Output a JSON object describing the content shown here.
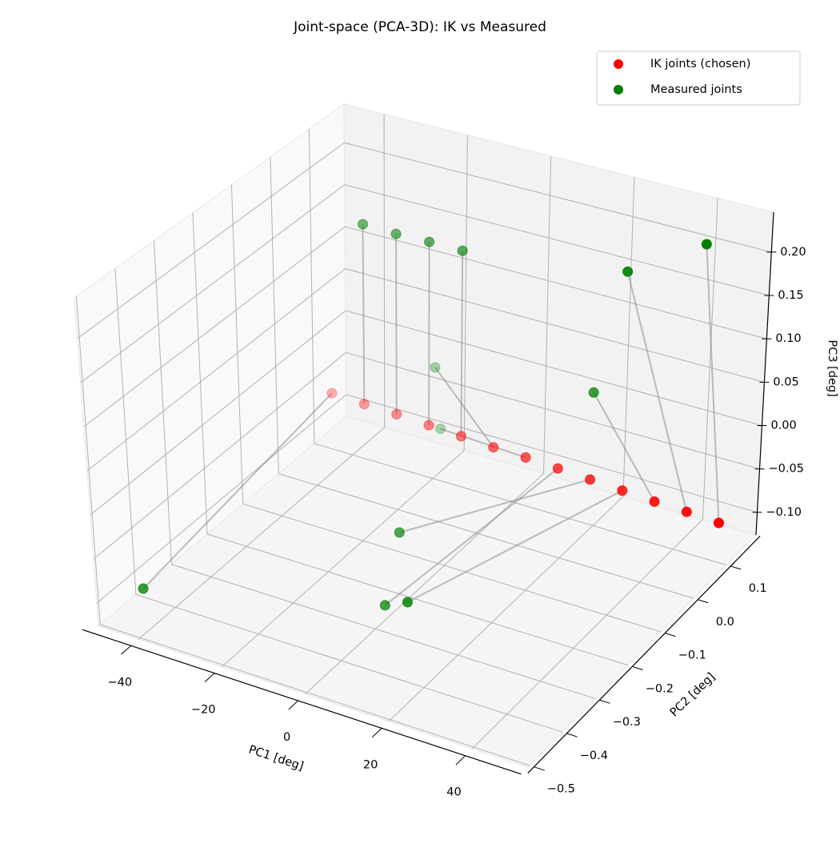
{
  "chart_data": {
    "type": "scatter",
    "title": "Joint-space (PCA-3D): IK vs Measured",
    "xlabel": "PC1 [deg]",
    "ylabel": "PC2 [deg]",
    "zlabel": "PC3 [deg]",
    "xlim": [
      -49.6,
      53.4
    ],
    "ylim": [
      -0.505,
      0.19
    ],
    "zlim": [
      -0.126,
      0.246
    ],
    "xticks": [
      {
        "value": -40,
        "label": "−40"
      },
      {
        "value": -20,
        "label": "−20"
      },
      0,
      20,
      40
    ],
    "yticks": [
      {
        "value": -0.5,
        "label": "−0.5"
      },
      {
        "value": -0.4,
        "label": "−0.4"
      },
      {
        "value": -0.3,
        "label": "−0.3"
      },
      {
        "value": -0.2,
        "label": "−0.2"
      },
      {
        "value": -0.1,
        "label": "−0.1"
      },
      {
        "value": 0,
        "label": "0.0"
      },
      0.1
    ],
    "zticks": [
      {
        "value": -0.1,
        "label": "−0.10"
      },
      {
        "value": -0.05,
        "label": "−0.05"
      },
      {
        "value": 0,
        "label": "0.00"
      },
      {
        "value": 0.05,
        "label": "0.05"
      },
      {
        "value": 0.1,
        "label": "0.10"
      },
      {
        "value": 0.15,
        "label": "0.15"
      },
      {
        "value": 0.2,
        "label": "0.20"
      }
    ],
    "grid": true,
    "legend": "upper right",
    "connectors": true,
    "series": [
      {
        "name": "IK joints (chosen)",
        "color": "#ff0000",
        "x": [
          -45,
          -37,
          -29,
          -21,
          -13,
          -5,
          3,
          11,
          19,
          27,
          35,
          43,
          51
        ],
        "y": [
          0.1,
          0.1,
          0.1,
          0.1,
          0.1,
          0.1,
          0.1,
          0.1,
          0.1,
          0.1,
          0.1,
          0.1,
          0.1
        ],
        "z": [
          -0.06,
          -0.062,
          -0.063,
          -0.065,
          -0.067,
          -0.069,
          -0.07,
          -0.072,
          -0.074,
          -0.076,
          -0.078,
          -0.079,
          -0.081
        ]
      },
      {
        "name": "Measured joints",
        "color": "#008000",
        "x": [
          -44,
          -37,
          -29,
          -21,
          -13,
          -23,
          -19,
          -1,
          -5,
          7,
          25,
          29,
          45
        ],
        "y": [
          -0.44,
          0.1,
          0.1,
          0.1,
          0.1,
          0.14,
          0.11,
          -0.26,
          -0.17,
          -0.29,
          0.03,
          0.07,
          0.1
        ],
        "z": [
          -0.097,
          0.15,
          0.149,
          0.15,
          0.15,
          -0.014,
          -0.07,
          -0.115,
          -0.07,
          -0.089,
          0.06,
          0.19,
          0.231
        ]
      }
    ]
  }
}
